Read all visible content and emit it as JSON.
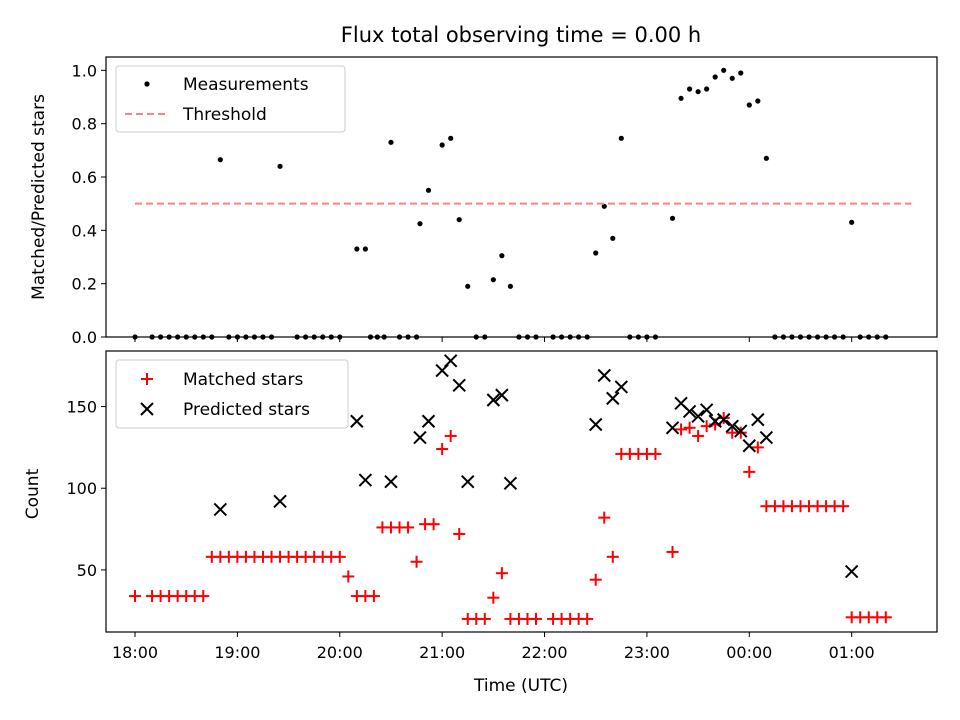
{
  "chart_data": [
    {
      "type": "scatter",
      "title": "Flux total observing time = 0.00 h",
      "xlabel": "",
      "ylabel": "Matched/Predicted stars",
      "x_is_time": true,
      "xlim": [
        "17:43",
        "01:50"
      ],
      "ylim": [
        0,
        1.05
      ],
      "yticks": [
        0.0,
        0.2,
        0.4,
        0.6,
        0.8,
        1.0
      ],
      "ytick_labels": [
        "0.0",
        "0.2",
        "0.4",
        "0.6",
        "0.8",
        "1.0"
      ],
      "legend_position": "upper left",
      "series": [
        {
          "name": "Measurements",
          "marker": "dot",
          "color": "#000000",
          "points": [
            [
              "18:00",
              0
            ],
            [
              "18:10",
              0
            ],
            [
              "18:15",
              0
            ],
            [
              "18:20",
              0
            ],
            [
              "18:25",
              0
            ],
            [
              "18:30",
              0
            ],
            [
              "18:35",
              0
            ],
            [
              "18:40",
              0
            ],
            [
              "18:45",
              0
            ],
            [
              "18:50",
              0.665
            ],
            [
              "18:55",
              0
            ],
            [
              "19:00",
              0
            ],
            [
              "19:05",
              0
            ],
            [
              "19:10",
              0
            ],
            [
              "19:15",
              0
            ],
            [
              "19:20",
              0
            ],
            [
              "19:25",
              0.64
            ],
            [
              "19:35",
              0
            ],
            [
              "19:40",
              0
            ],
            [
              "19:45",
              0
            ],
            [
              "19:50",
              0
            ],
            [
              "19:55",
              0
            ],
            [
              "20:00",
              0
            ],
            [
              "20:10",
              0.33
            ],
            [
              "20:15",
              0.33
            ],
            [
              "20:18",
              0
            ],
            [
              "20:22",
              0
            ],
            [
              "20:26",
              0
            ],
            [
              "20:30",
              0.73
            ],
            [
              "20:35",
              0
            ],
            [
              "20:40",
              0
            ],
            [
              "20:45",
              0
            ],
            [
              "20:47",
              0.425
            ],
            [
              "20:52",
              0.55
            ],
            [
              "21:00",
              0.72
            ],
            [
              "21:05",
              0.745
            ],
            [
              "21:10",
              0.44
            ],
            [
              "21:15",
              0.19
            ],
            [
              "21:20",
              0
            ],
            [
              "21:25",
              0
            ],
            [
              "21:30",
              0.215
            ],
            [
              "21:35",
              0.305
            ],
            [
              "21:40",
              0.19
            ],
            [
              "21:45",
              0
            ],
            [
              "21:50",
              0
            ],
            [
              "21:55",
              0
            ],
            [
              "22:05",
              0
            ],
            [
              "22:10",
              0
            ],
            [
              "22:15",
              0
            ],
            [
              "22:20",
              0
            ],
            [
              "22:25",
              0
            ],
            [
              "22:30",
              0.315
            ],
            [
              "22:35",
              0.49
            ],
            [
              "22:40",
              0.37
            ],
            [
              "22:45",
              0.745
            ],
            [
              "22:50",
              0
            ],
            [
              "22:55",
              0
            ],
            [
              "23:00",
              0
            ],
            [
              "23:05",
              0
            ],
            [
              "23:15",
              0.445
            ],
            [
              "23:20",
              0.895
            ],
            [
              "23:25",
              0.93
            ],
            [
              "23:30",
              0.92
            ],
            [
              "23:35",
              0.93
            ],
            [
              "23:40",
              0.975
            ],
            [
              "23:45",
              1.0
            ],
            [
              "23:50",
              0.97
            ],
            [
              "23:55",
              0.99
            ],
            [
              "00:00",
              0.87
            ],
            [
              "00:05",
              0.885
            ],
            [
              "00:10",
              0.67
            ],
            [
              "00:15",
              0
            ],
            [
              "00:20",
              0
            ],
            [
              "00:25",
              0
            ],
            [
              "00:30",
              0
            ],
            [
              "00:35",
              0
            ],
            [
              "00:40",
              0
            ],
            [
              "00:45",
              0
            ],
            [
              "00:50",
              0
            ],
            [
              "00:55",
              0
            ],
            [
              "01:00",
              0.43
            ],
            [
              "01:05",
              0
            ],
            [
              "01:10",
              0
            ],
            [
              "01:15",
              0
            ],
            [
              "01:20",
              0
            ]
          ]
        },
        {
          "name": "Threshold",
          "type": "line",
          "style": "dashed",
          "color": "#ff8080",
          "x": [
            "18:00",
            "01:35"
          ],
          "y": [
            0.5,
            0.5
          ]
        }
      ]
    },
    {
      "type": "scatter",
      "title": "",
      "xlabel": "Time (UTC)",
      "ylabel": "Count",
      "x_is_time": true,
      "xlim": [
        "17:43",
        "01:50"
      ],
      "ylim": [
        12,
        184
      ],
      "yticks": [
        50,
        100,
        150
      ],
      "ytick_labels": [
        "50",
        "100",
        "150"
      ],
      "xticks": [
        "18:00",
        "19:00",
        "20:00",
        "21:00",
        "22:00",
        "23:00",
        "00:00",
        "01:00"
      ],
      "xtick_labels": [
        "18:00",
        "19:00",
        "20:00",
        "21:00",
        "22:00",
        "23:00",
        "00:00",
        "01:00"
      ],
      "legend_position": "upper left",
      "series": [
        {
          "name": "Matched stars",
          "marker": "plus",
          "color": "#ff0000",
          "points": [
            [
              "18:00",
              34
            ],
            [
              "18:10",
              34
            ],
            [
              "18:15",
              34
            ],
            [
              "18:20",
              34
            ],
            [
              "18:25",
              34
            ],
            [
              "18:30",
              34
            ],
            [
              "18:35",
              34
            ],
            [
              "18:40",
              34
            ],
            [
              "18:45",
              58
            ],
            [
              "18:50",
              58
            ],
            [
              "18:55",
              58
            ],
            [
              "19:00",
              58
            ],
            [
              "19:05",
              58
            ],
            [
              "19:10",
              58
            ],
            [
              "19:15",
              58
            ],
            [
              "19:20",
              58
            ],
            [
              "19:25",
              58
            ],
            [
              "19:30",
              58
            ],
            [
              "19:35",
              58
            ],
            [
              "19:40",
              58
            ],
            [
              "19:45",
              58
            ],
            [
              "19:50",
              58
            ],
            [
              "19:55",
              58
            ],
            [
              "20:00",
              58
            ],
            [
              "20:05",
              46
            ],
            [
              "20:10",
              34
            ],
            [
              "20:15",
              34
            ],
            [
              "20:20",
              34
            ],
            [
              "20:25",
              76
            ],
            [
              "20:30",
              76
            ],
            [
              "20:35",
              76
            ],
            [
              "20:40",
              76
            ],
            [
              "20:45",
              55
            ],
            [
              "20:50",
              78
            ],
            [
              "20:55",
              78
            ],
            [
              "21:00",
              124
            ],
            [
              "21:05",
              132
            ],
            [
              "21:10",
              72
            ],
            [
              "21:15",
              20
            ],
            [
              "21:20",
              20
            ],
            [
              "21:25",
              20
            ],
            [
              "21:30",
              33
            ],
            [
              "21:35",
              48
            ],
            [
              "21:40",
              20
            ],
            [
              "21:45",
              20
            ],
            [
              "21:50",
              20
            ],
            [
              "21:55",
              20
            ],
            [
              "22:05",
              20
            ],
            [
              "22:10",
              20
            ],
            [
              "22:15",
              20
            ],
            [
              "22:20",
              20
            ],
            [
              "22:25",
              20
            ],
            [
              "22:30",
              44
            ],
            [
              "22:35",
              82
            ],
            [
              "22:40",
              58
            ],
            [
              "22:45",
              121
            ],
            [
              "22:50",
              121
            ],
            [
              "22:55",
              121
            ],
            [
              "23:00",
              121
            ],
            [
              "23:05",
              121
            ],
            [
              "23:15",
              61
            ],
            [
              "23:20",
              136
            ],
            [
              "23:25",
              137
            ],
            [
              "23:30",
              132
            ],
            [
              "23:35",
              138
            ],
            [
              "23:40",
              139
            ],
            [
              "23:45",
              143
            ],
            [
              "23:50",
              134
            ],
            [
              "23:55",
              134
            ],
            [
              "00:00",
              110
            ],
            [
              "00:05",
              125
            ],
            [
              "00:10",
              89
            ],
            [
              "00:15",
              89
            ],
            [
              "00:20",
              89
            ],
            [
              "00:25",
              89
            ],
            [
              "00:30",
              89
            ],
            [
              "00:35",
              89
            ],
            [
              "00:40",
              89
            ],
            [
              "00:45",
              89
            ],
            [
              "00:50",
              89
            ],
            [
              "00:55",
              89
            ],
            [
              "01:00",
              21
            ],
            [
              "01:05",
              21
            ],
            [
              "01:10",
              21
            ],
            [
              "01:15",
              21
            ],
            [
              "01:20",
              21
            ]
          ]
        },
        {
          "name": "Predicted stars",
          "marker": "x",
          "color": "#000000",
          "points": [
            [
              "18:50",
              87
            ],
            [
              "19:25",
              92
            ],
            [
              "20:10",
              141
            ],
            [
              "20:15",
              105
            ],
            [
              "20:30",
              104
            ],
            [
              "20:47",
              131
            ],
            [
              "20:52",
              141
            ],
            [
              "21:00",
              172
            ],
            [
              "21:05",
              178
            ],
            [
              "21:10",
              163
            ],
            [
              "21:15",
              104
            ],
            [
              "21:30",
              154
            ],
            [
              "21:35",
              157
            ],
            [
              "21:40",
              103
            ],
            [
              "22:30",
              139
            ],
            [
              "22:35",
              169
            ],
            [
              "22:40",
              155
            ],
            [
              "22:45",
              162
            ],
            [
              "23:15",
              137
            ],
            [
              "23:20",
              152
            ],
            [
              "23:25",
              147
            ],
            [
              "23:30",
              144
            ],
            [
              "23:35",
              148
            ],
            [
              "23:40",
              141
            ],
            [
              "23:45",
              142
            ],
            [
              "23:50",
              138
            ],
            [
              "23:55",
              135
            ],
            [
              "00:00",
              126
            ],
            [
              "00:05",
              142
            ],
            [
              "00:10",
              131
            ],
            [
              "01:00",
              49
            ]
          ]
        }
      ]
    }
  ]
}
